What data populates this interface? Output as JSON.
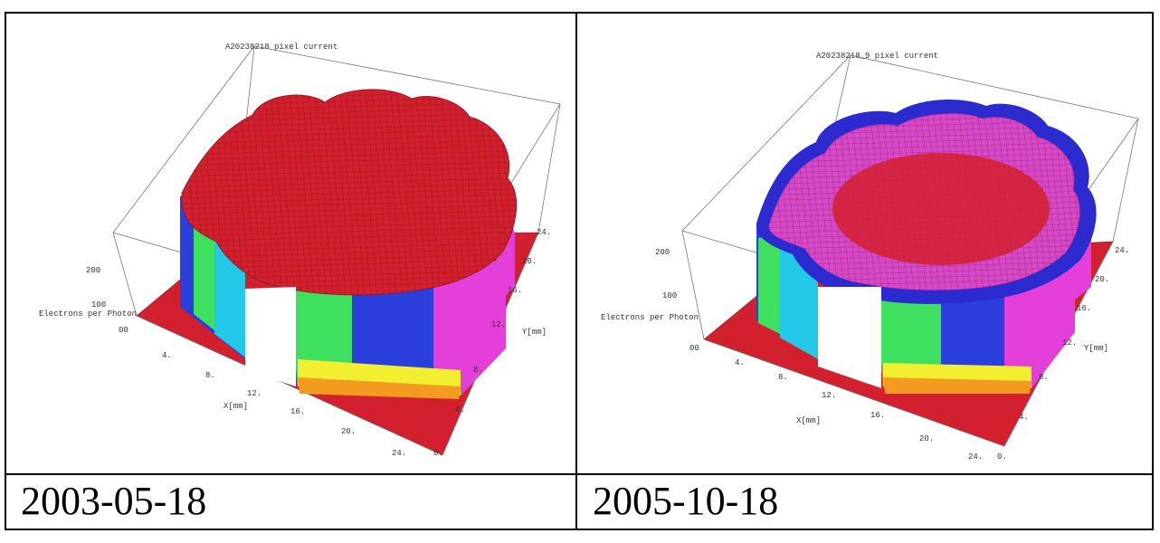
{
  "colors": {
    "surface_red": "#d3202e",
    "mesh_line": "#8a1a26",
    "wall_blue": "#2a3fdc",
    "wall_cyan": "#22c8e6",
    "wall_green": "#3fe060",
    "wall_yellow": "#f2ee30",
    "wall_orange": "#f39a20",
    "wall_magenta": "#e53fd9",
    "top_magenta": "#d648c8",
    "edge_blue": "#2b2bd0"
  },
  "panels": [
    {
      "title": "A20238218 pixel current",
      "date": "2003-05-18"
    },
    {
      "title": "A20238218_9 pixel current",
      "date": "2005-10-18"
    }
  ],
  "chart_data": [
    {
      "type": "surface3d",
      "title": "A20238218 pixel current",
      "xlabel": "X[mm]",
      "ylabel": "Y[mm]",
      "zlabel": "Electrons per Photon",
      "x_ticks": [
        "4.",
        "8.",
        "12.",
        "16.",
        "20.",
        "24."
      ],
      "y_ticks": [
        "0.",
        "4.",
        "8.",
        "12.",
        "16.",
        "20.",
        "24."
      ],
      "z_ticks": [
        "00",
        "100",
        "200"
      ],
      "xlim": [
        0,
        24
      ],
      "ylim": [
        0,
        24
      ],
      "zlim": [
        0,
        300
      ],
      "plateau_level": 300,
      "floor_level": 0,
      "date_caption": "2003-05-18"
    },
    {
      "type": "surface3d",
      "title": "A20238218_9 pixel current",
      "xlabel": "X[mm]",
      "ylabel": "Y[mm]",
      "zlabel": "Electrons per Photon",
      "x_ticks": [
        "4.",
        "8.",
        "12.",
        "16.",
        "20.",
        "24."
      ],
      "y_ticks": [
        "0.",
        "4.",
        "8.",
        "12.",
        "16.",
        "20.",
        "24."
      ],
      "z_ticks": [
        "00",
        "100",
        "200"
      ],
      "xlim": [
        0,
        24
      ],
      "ylim": [
        0,
        24
      ],
      "zlim": [
        0,
        300
      ],
      "plateau_level": 260,
      "floor_level": 0,
      "date_caption": "2005-10-18"
    }
  ]
}
